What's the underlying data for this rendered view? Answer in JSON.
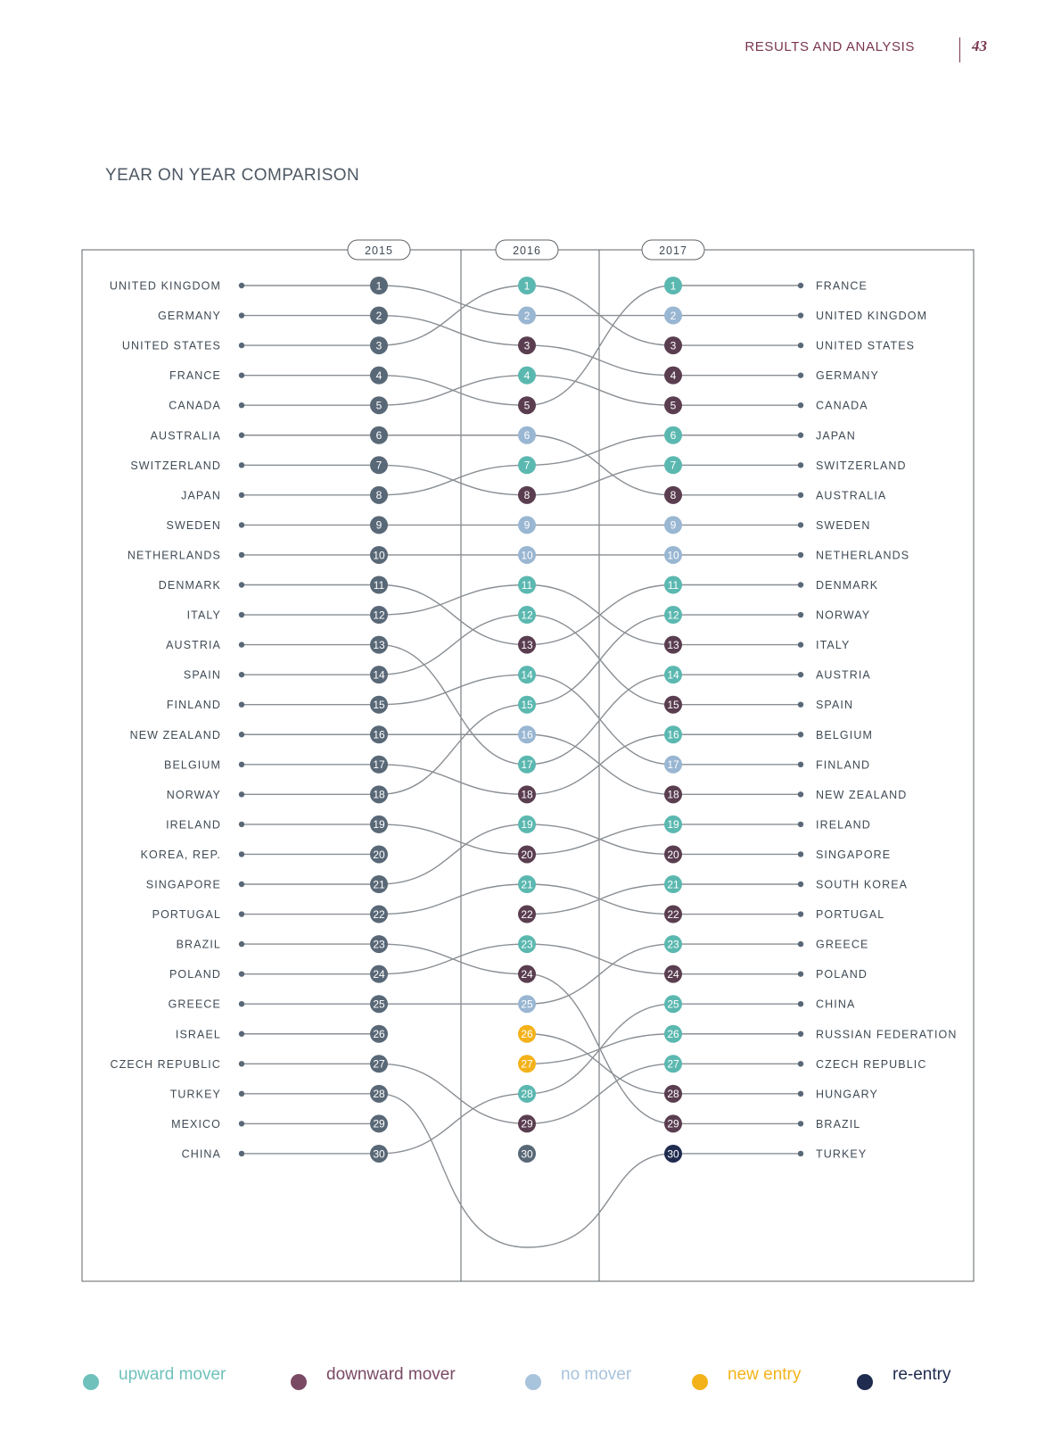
{
  "header": {
    "section": "RESULTS AND ANALYSIS",
    "page_number": "43"
  },
  "title": "YEAR ON YEAR COMPARISON",
  "colors": {
    "upward": "#5bb8b0",
    "downward": "#5a3e50",
    "no_move": "#99b6d2",
    "new_entry": "#f4b21a",
    "re_entry": "#1f2b4f",
    "base": "#596877",
    "line": "#8a8f94",
    "frame": "#5f6468"
  },
  "legend": [
    {
      "key": "upward",
      "label": "upward mover",
      "color": "#6fc1bb",
      "text_color": "#6fc1bb"
    },
    {
      "key": "downward",
      "label": "downward mover",
      "color": "#7a4a65",
      "text_color": "#7a4a65"
    },
    {
      "key": "no_move",
      "label": "no mover",
      "color": "#a8c3dc",
      "text_color": "#a8c3dc"
    },
    {
      "key": "new_entry",
      "label": "new entry",
      "color": "#f4b21a",
      "text_color": "#f4b21a"
    },
    {
      "key": "re_entry",
      "label": "re-entry",
      "color": "#1f2b4f",
      "text_color": "#1f2b4f"
    }
  ],
  "chart_data": {
    "type": "bump",
    "title": "YEAR ON YEAR COMPARISON",
    "years": [
      "2015",
      "2016",
      "2017"
    ],
    "ranks": [
      1,
      2,
      3,
      4,
      5,
      6,
      7,
      8,
      9,
      10,
      11,
      12,
      13,
      14,
      15,
      16,
      17,
      18,
      19,
      20,
      21,
      22,
      23,
      24,
      25,
      26,
      27,
      28,
      29,
      30
    ],
    "ranking_2015": [
      "UNITED KINGDOM",
      "GERMANY",
      "UNITED STATES",
      "FRANCE",
      "CANADA",
      "AUSTRALIA",
      "SWITZERLAND",
      "JAPAN",
      "SWEDEN",
      "NETHERLANDS",
      "DENMARK",
      "ITALY",
      "AUSTRIA",
      "SPAIN",
      "FINLAND",
      "NEW ZEALAND",
      "BELGIUM",
      "NORWAY",
      "IRELAND",
      "KOREA, REP.",
      "SINGAPORE",
      "PORTUGAL",
      "BRAZIL",
      "POLAND",
      "GREECE",
      "ISRAEL",
      "CZECH REPUBLIC",
      "TURKEY",
      "MEXICO",
      "CHINA"
    ],
    "ranking_2017": [
      "FRANCE",
      "UNITED KINGDOM",
      "UNITED STATES",
      "GERMANY",
      "CANADA",
      "JAPAN",
      "SWITZERLAND",
      "AUSTRALIA",
      "SWEDEN",
      "NETHERLANDS",
      "DENMARK",
      "NORWAY",
      "ITALY",
      "AUSTRIA",
      "SPAIN",
      "BELGIUM",
      "FINLAND",
      "NEW ZEALAND",
      "IRELAND",
      "SINGAPORE",
      "SOUTH KOREA",
      "PORTUGAL",
      "GREECE",
      "POLAND",
      "CHINA",
      "RUSSIAN FEDERATION",
      "CZECH REPUBLIC",
      "HUNGARY",
      "BRAZIL",
      "TURKEY"
    ],
    "status_2016": [
      "upward",
      "no_move",
      "downward",
      "upward",
      "downward",
      "no_move",
      "upward",
      "downward",
      "no_move",
      "no_move",
      "upward",
      "upward",
      "downward",
      "upward",
      "upward",
      "no_move",
      "upward",
      "downward",
      "upward",
      "downward",
      "upward",
      "downward",
      "upward",
      "downward",
      "no_move",
      "new_entry",
      "new_entry",
      "upward",
      "downward",
      "base"
    ],
    "status_2017": [
      "upward",
      "no_move",
      "downward",
      "downward",
      "downward",
      "upward",
      "upward",
      "downward",
      "no_move",
      "no_move",
      "upward",
      "upward",
      "downward",
      "upward",
      "downward",
      "upward",
      "no_move",
      "downward",
      "upward",
      "downward",
      "upward",
      "downward",
      "upward",
      "downward",
      "upward",
      "upward",
      "upward",
      "downward",
      "downward",
      "re_entry"
    ],
    "links_2015_2016": [
      [
        1,
        2
      ],
      [
        2,
        3
      ],
      [
        3,
        1
      ],
      [
        4,
        5
      ],
      [
        5,
        4
      ],
      [
        6,
        6
      ],
      [
        7,
        8
      ],
      [
        8,
        7
      ],
      [
        9,
        9
      ],
      [
        10,
        10
      ],
      [
        11,
        13
      ],
      [
        12,
        11
      ],
      [
        13,
        17
      ],
      [
        14,
        12
      ],
      [
        15,
        14
      ],
      [
        16,
        16
      ],
      [
        17,
        18
      ],
      [
        18,
        15
      ],
      [
        19,
        20
      ],
      [
        21,
        19
      ],
      [
        22,
        21
      ],
      [
        23,
        24
      ],
      [
        24,
        23
      ],
      [
        25,
        25
      ],
      [
        27,
        29
      ],
      [
        28,
        "out"
      ],
      [
        30,
        28
      ]
    ],
    "links_2016_2017": [
      [
        1,
        3
      ],
      [
        2,
        2
      ],
      [
        3,
        4
      ],
      [
        4,
        5
      ],
      [
        5,
        1
      ],
      [
        6,
        8
      ],
      [
        7,
        6
      ],
      [
        8,
        7
      ],
      [
        9,
        9
      ],
      [
        10,
        10
      ],
      [
        11,
        13
      ],
      [
        12,
        15
      ],
      [
        13,
        11
      ],
      [
        14,
        17
      ],
      [
        15,
        12
      ],
      [
        16,
        18
      ],
      [
        17,
        14
      ],
      [
        18,
        16
      ],
      [
        19,
        20
      ],
      [
        20,
        19
      ],
      [
        21,
        22
      ],
      [
        22,
        21
      ],
      [
        23,
        24
      ],
      [
        24,
        29
      ],
      [
        25,
        23
      ],
      [
        26,
        28
      ],
      [
        27,
        26
      ],
      [
        28,
        25
      ],
      [
        29,
        27
      ],
      [
        "out",
        30
      ]
    ]
  }
}
